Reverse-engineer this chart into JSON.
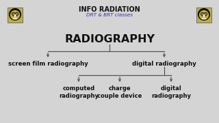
{
  "bg_color": "#d4d4d4",
  "title": "INFO RADIATION",
  "subtitle": "DRT & BRT classes",
  "subtitle_color": "#3333bb",
  "main_node": "RADIOGRAPHY",
  "level1_left": "screen film radiography",
  "level1_right": "digital radiography",
  "level2_nodes": [
    "computed\nradiography",
    "charge\ncouple device",
    "digital\nradiography"
  ],
  "title_fontsize": 7.0,
  "subtitle_fontsize": 5.2,
  "main_fontsize": 11.5,
  "level1_fontsize": 6.2,
  "level2_fontsize": 6.0,
  "line_color": "#555555",
  "text_color": "#111111",
  "mask_bg": "#c8c8c8",
  "mask_border": "#888888"
}
